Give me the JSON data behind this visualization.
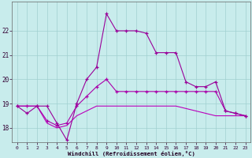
{
  "xlabel": "Windchill (Refroidissement éolien,°C)",
  "bg_color": "#c8ecec",
  "grid_color": "#a0d0d0",
  "line_color1": "#990099",
  "line_color2": "#aa00aa",
  "line_color3": "#bb00bb",
  "hours": [
    0,
    1,
    2,
    3,
    4,
    5,
    6,
    7,
    8,
    9,
    10,
    11,
    12,
    13,
    14,
    15,
    16,
    17,
    18,
    19,
    20,
    21,
    22,
    23
  ],
  "series1": [
    18.9,
    18.6,
    18.9,
    18.9,
    18.2,
    17.5,
    19.0,
    20.0,
    20.5,
    22.7,
    22.0,
    22.0,
    22.0,
    21.9,
    21.1,
    21.1,
    21.1,
    19.9,
    19.7,
    19.7,
    19.9,
    18.7,
    18.6,
    18.5
  ],
  "series2": [
    18.9,
    18.9,
    18.9,
    18.3,
    18.1,
    18.2,
    18.9,
    19.3,
    19.7,
    20.0,
    19.5,
    19.5,
    19.5,
    19.5,
    19.5,
    19.5,
    19.5,
    19.5,
    19.5,
    19.5,
    19.5,
    18.7,
    18.6,
    18.5
  ],
  "series3": [
    18.9,
    18.9,
    18.9,
    18.2,
    18.0,
    18.1,
    18.5,
    18.7,
    18.9,
    18.9,
    18.9,
    18.9,
    18.9,
    18.9,
    18.9,
    18.9,
    18.9,
    18.8,
    18.7,
    18.6,
    18.5,
    18.5,
    18.5,
    18.5
  ],
  "ylim": [
    17.4,
    23.2
  ],
  "yticks": [
    18,
    19,
    20,
    21,
    22
  ],
  "xlim": [
    -0.5,
    23.5
  ]
}
